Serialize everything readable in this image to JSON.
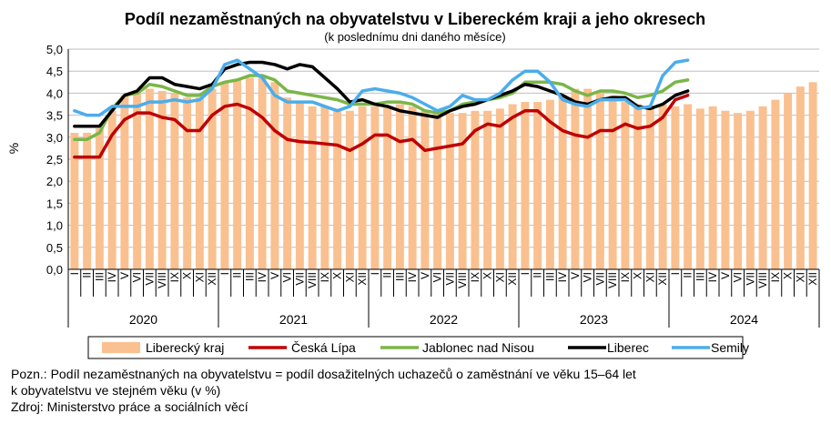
{
  "chart_data": {
    "type": "bar",
    "title": "Podíl nezaměstnaných na obyvatelstvu v Libereckém kraji a jeho okresech",
    "subtitle": "(k poslednímu dni daného měsíce)",
    "ylabel": "%",
    "ylim": [
      0,
      5
    ],
    "yticks": [
      "0,0",
      "0,5",
      "1,0",
      "1,5",
      "2,0",
      "2,5",
      "3,0",
      "3,5",
      "4,0",
      "4,5",
      "5,0"
    ],
    "month_labels": [
      "I",
      "II",
      "III",
      "IV",
      "V",
      "VI",
      "VII",
      "VIII",
      "IX",
      "X",
      "XI",
      "XII"
    ],
    "years": [
      "2020",
      "2021",
      "2022",
      "2023",
      "2024"
    ],
    "grid": true,
    "legend_position": "bottom",
    "series": [
      {
        "name": "Liberecký kraj",
        "kind": "bar",
        "color": "#fac090",
        "values": [
          3.1,
          3.1,
          3.2,
          3.6,
          3.95,
          4.05,
          4.1,
          4.05,
          4.0,
          3.9,
          3.9,
          4.1,
          4.25,
          4.3,
          4.35,
          4.4,
          4.25,
          3.9,
          3.8,
          3.7,
          3.7,
          3.65,
          3.6,
          3.7,
          3.7,
          3.7,
          3.75,
          3.7,
          3.6,
          3.55,
          3.55,
          3.55,
          3.6,
          3.6,
          3.65,
          3.75,
          3.8,
          3.8,
          3.85,
          3.95,
          4.1,
          4.1,
          4.05,
          3.95,
          3.8,
          3.75,
          3.7,
          3.75,
          3.7,
          3.75,
          3.65,
          3.7,
          3.6,
          3.55,
          3.6,
          3.7,
          3.85,
          4.0,
          4.15,
          4.25
        ]
      },
      {
        "name": "Česká Lípa",
        "kind": "line",
        "color": "#c00000",
        "values": [
          2.55,
          2.55,
          2.55,
          3.05,
          3.4,
          3.55,
          3.55,
          3.45,
          3.4,
          3.15,
          3.15,
          3.5,
          3.7,
          3.75,
          3.65,
          3.45,
          3.15,
          2.95,
          2.9,
          2.88,
          2.85,
          2.82,
          2.7,
          2.85,
          3.05,
          3.05,
          2.9,
          2.95,
          2.7,
          2.75,
          2.8,
          2.85,
          3.15,
          3.3,
          3.25,
          3.45,
          3.6,
          3.6,
          3.35,
          3.15,
          3.05,
          3.0,
          3.15,
          3.15,
          3.3,
          3.2,
          3.25,
          3.45,
          3.85,
          3.95,
          null,
          null,
          null,
          null,
          null,
          null,
          null,
          null,
          null,
          null
        ]
      },
      {
        "name": "Jablonec nad Nisou",
        "kind": "line",
        "color": "#7ab648",
        "values": [
          2.95,
          2.95,
          3.1,
          3.65,
          3.95,
          4.0,
          4.2,
          4.15,
          4.05,
          3.95,
          3.95,
          4.15,
          4.25,
          4.3,
          4.4,
          4.4,
          4.3,
          4.05,
          4.0,
          3.95,
          3.9,
          3.85,
          3.75,
          3.75,
          3.75,
          3.8,
          3.8,
          3.75,
          3.6,
          3.55,
          3.6,
          3.75,
          3.8,
          3.85,
          3.9,
          4.0,
          4.25,
          4.25,
          4.25,
          4.2,
          4.05,
          3.95,
          4.05,
          4.05,
          4.0,
          3.9,
          3.95,
          4.05,
          4.25,
          4.3,
          null,
          null,
          null,
          null,
          null,
          null,
          null,
          null,
          null,
          null
        ]
      },
      {
        "name": "Liberec",
        "kind": "line",
        "color": "#000000",
        "values": [
          3.25,
          3.25,
          3.25,
          3.6,
          3.95,
          4.05,
          4.35,
          4.35,
          4.2,
          4.15,
          4.1,
          4.2,
          4.55,
          4.65,
          4.7,
          4.7,
          4.65,
          4.55,
          4.65,
          4.6,
          4.35,
          4.1,
          3.8,
          3.85,
          3.75,
          3.7,
          3.6,
          3.55,
          3.5,
          3.45,
          3.6,
          3.7,
          3.75,
          3.85,
          3.95,
          4.05,
          4.2,
          4.15,
          4.05,
          3.95,
          3.8,
          3.75,
          3.85,
          3.9,
          3.9,
          3.7,
          3.65,
          3.75,
          3.95,
          4.05,
          null,
          null,
          null,
          null,
          null,
          null,
          null,
          null,
          null,
          null
        ]
      },
      {
        "name": "Semily",
        "kind": "line",
        "color": "#4badeb",
        "values": [
          3.6,
          3.5,
          3.5,
          3.7,
          3.7,
          3.7,
          3.8,
          3.8,
          3.85,
          3.8,
          3.85,
          4.1,
          4.65,
          4.75,
          4.55,
          4.35,
          3.95,
          3.8,
          3.8,
          3.8,
          3.7,
          3.6,
          3.7,
          4.05,
          4.1,
          4.05,
          4.0,
          3.9,
          3.75,
          3.6,
          3.7,
          3.95,
          3.85,
          3.85,
          4.0,
          4.3,
          4.5,
          4.5,
          4.25,
          3.85,
          3.75,
          3.7,
          3.85,
          3.85,
          3.85,
          3.65,
          3.7,
          4.4,
          4.7,
          4.75,
          null,
          null,
          null,
          null,
          null,
          null,
          null,
          null,
          null,
          null
        ]
      }
    ]
  },
  "notes": {
    "line1": "Pozn.: Podíl nezaměstnaných na obyvatelstvu = podíl dosažitelných uchazečů o zaměstnání ve věku 15–64 let",
    "line2": "k obyvatelstvu ve stejném věku (v %)",
    "line3": "Zdroj: Ministerstvo práce a sociálních věcí"
  }
}
